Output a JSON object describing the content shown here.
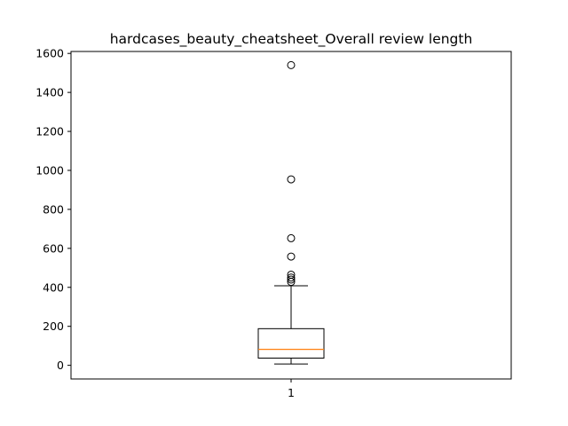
{
  "chart_data": {
    "type": "box",
    "title": "hardcases_beauty_cheatsheet_Overall review length",
    "xlabel": "",
    "ylabel": "",
    "categories": [
      "1"
    ],
    "ylim": [
      -70,
      1610
    ],
    "yticks": [
      0,
      200,
      400,
      600,
      800,
      1000,
      1200,
      1400,
      1600
    ],
    "grid": false,
    "boxes": [
      {
        "category": "1",
        "whisker_low": 7,
        "q1": 37,
        "median": 82,
        "q3": 188,
        "whisker_high": 408,
        "outliers": [
          428,
          440,
          450,
          465,
          558,
          652,
          954,
          1540
        ]
      }
    ],
    "colors": {
      "box": "#000000",
      "median": "#ff7f0e",
      "outlier": "#000000"
    }
  }
}
